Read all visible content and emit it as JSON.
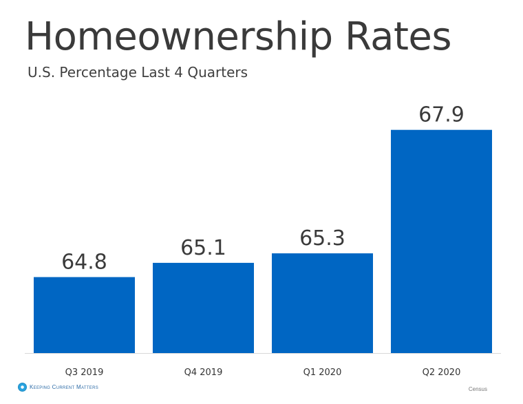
{
  "chart_data": {
    "type": "bar",
    "title": "Homeownership Rates",
    "subtitle": "U.S. Percentage Last 4 Quarters",
    "categories": [
      "Q3 2019",
      "Q4 2019",
      "Q1 2020",
      "Q2 2020"
    ],
    "values": [
      64.8,
      65.1,
      65.3,
      67.9
    ],
    "value_labels": [
      "64.8",
      "65.1",
      "65.3",
      "67.9"
    ],
    "xlabel": "",
    "ylabel": "",
    "ylim": [
      63.2,
      68.2
    ],
    "grid": false,
    "legend": "none",
    "bar_color": "#0066c3"
  },
  "footer": {
    "logo_text": "Keeping Current Matters",
    "source": "Census"
  }
}
